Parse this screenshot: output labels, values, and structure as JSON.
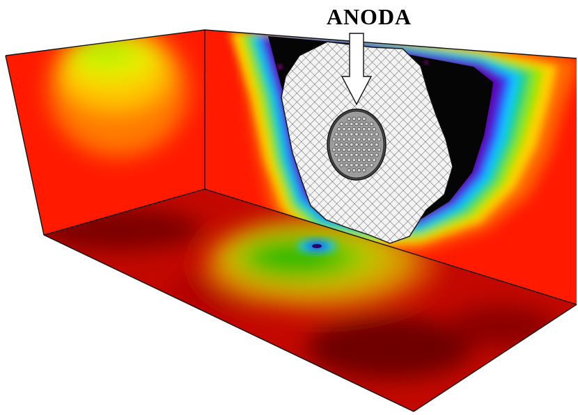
{
  "label": {
    "anode": "ANODA"
  },
  "colors": {
    "background": "#ffffff",
    "field_high": "#ff1a00",
    "field_dark": "#8a0000",
    "field_orange": "#ff8a00",
    "field_yellow": "#e8f000",
    "field_green": "#33d300",
    "field_cyan": "#10c8ff",
    "field_blue": "#1030ff",
    "field_violet": "#5a00b0",
    "field_void": "#050505",
    "anode_plate": "#f2f2f2",
    "anode_disc": "#9c9c9c",
    "edge": "#111111"
  },
  "icons": {
    "arrow": "down-arrow-icon",
    "anode_disc": "perforated-disc-icon",
    "mesh": "mesh-plate-icon"
  }
}
